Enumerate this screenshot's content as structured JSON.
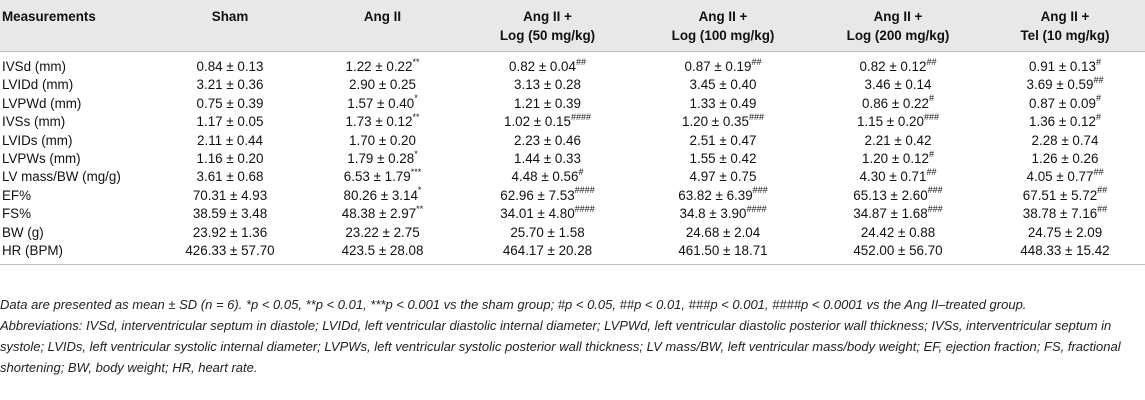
{
  "table": {
    "headers": [
      [
        "Measurements",
        ""
      ],
      [
        "Sham",
        ""
      ],
      [
        "Ang II",
        ""
      ],
      [
        "Ang II +",
        "Log (50 mg/kg)"
      ],
      [
        "Ang II +",
        "Log (100 mg/kg)"
      ],
      [
        "Ang II +",
        "Log (200 mg/kg)"
      ],
      [
        "Ang II +",
        "Tel (10 mg/kg)"
      ]
    ],
    "rows": [
      {
        "label": "IVSd (mm)",
        "cells": [
          {
            "v": "0.84 ± 0.13",
            "s": ""
          },
          {
            "v": "1.22 ± 0.22",
            "s": "**"
          },
          {
            "v": "0.82 ± 0.04",
            "s": "##"
          },
          {
            "v": "0.87 ± 0.19",
            "s": "##"
          },
          {
            "v": "0.82 ± 0.12",
            "s": "##"
          },
          {
            "v": "0.91 ± 0.13",
            "s": "#"
          }
        ]
      },
      {
        "label": "LVIDd (mm)",
        "cells": [
          {
            "v": "3.21 ± 0.36",
            "s": ""
          },
          {
            "v": "2.90 ± 0.25",
            "s": ""
          },
          {
            "v": "3.13 ± 0.28",
            "s": ""
          },
          {
            "v": "3.45 ± 0.40",
            "s": ""
          },
          {
            "v": "3.46 ± 0.14",
            "s": ""
          },
          {
            "v": "3.69 ± 0.59",
            "s": "##"
          }
        ]
      },
      {
        "label": "LVPWd (mm)",
        "cells": [
          {
            "v": "0.75 ± 0.39",
            "s": ""
          },
          {
            "v": "1.57 ± 0.40",
            "s": "*"
          },
          {
            "v": "1.21 ± 0.39",
            "s": ""
          },
          {
            "v": "1.33 ± 0.49",
            "s": ""
          },
          {
            "v": "0.86 ± 0.22",
            "s": "#"
          },
          {
            "v": "0.87 ± 0.09",
            "s": "#"
          }
        ]
      },
      {
        "label": "IVSs (mm)",
        "cells": [
          {
            "v": "1.17 ± 0.05",
            "s": ""
          },
          {
            "v": "1.73 ± 0.12",
            "s": "**"
          },
          {
            "v": "1.02 ± 0.15",
            "s": "####"
          },
          {
            "v": "1.20 ± 0.35",
            "s": "###"
          },
          {
            "v": "1.15 ± 0.20",
            "s": "###"
          },
          {
            "v": "1.36 ± 0.12",
            "s": "#"
          }
        ]
      },
      {
        "label": "LVIDs (mm)",
        "cells": [
          {
            "v": "2.11 ± 0.44",
            "s": ""
          },
          {
            "v": "1.70 ± 0.20",
            "s": ""
          },
          {
            "v": "2.23 ± 0.46",
            "s": ""
          },
          {
            "v": "2.51 ± 0.47",
            "s": ""
          },
          {
            "v": "2.21 ± 0.42",
            "s": ""
          },
          {
            "v": "2.28 ± 0.74",
            "s": ""
          }
        ]
      },
      {
        "label": "LVPWs (mm)",
        "cells": [
          {
            "v": "1.16 ± 0.20",
            "s": ""
          },
          {
            "v": "1.79 ± 0.28",
            "s": "*"
          },
          {
            "v": "1.44 ± 0.33",
            "s": ""
          },
          {
            "v": "1.55 ± 0.42",
            "s": ""
          },
          {
            "v": "1.20 ± 0.12",
            "s": "#"
          },
          {
            "v": "1.26 ± 0.26",
            "s": ""
          }
        ]
      },
      {
        "label": "LV mass/BW (mg/g)",
        "cells": [
          {
            "v": "3.61 ± 0.68",
            "s": ""
          },
          {
            "v": "6.53 ± 1.79",
            "s": "***"
          },
          {
            "v": "4.48 ± 0.56",
            "s": "#"
          },
          {
            "v": "4.97 ± 0.75",
            "s": ""
          },
          {
            "v": "4.30 ± 0.71",
            "s": "##"
          },
          {
            "v": "4.05 ± 0.77",
            "s": "##"
          }
        ]
      },
      {
        "label": "EF%",
        "cells": [
          {
            "v": "70.31 ± 4.93",
            "s": ""
          },
          {
            "v": "80.26 ± 3.14",
            "s": "*"
          },
          {
            "v": "62.96 ± 7.53",
            "s": "####"
          },
          {
            "v": "63.82 ± 6.39",
            "s": "###"
          },
          {
            "v": "65.13 ± 2.60",
            "s": "###"
          },
          {
            "v": "67.51 ± 5.72",
            "s": "##"
          }
        ]
      },
      {
        "label": "FS%",
        "cells": [
          {
            "v": "38.59 ± 3.48",
            "s": ""
          },
          {
            "v": "48.38 ± 2.97",
            "s": "**"
          },
          {
            "v": "34.01 ± 4.80",
            "s": "####"
          },
          {
            "v": "34.8 ± 3.90",
            "s": "####"
          },
          {
            "v": "34.87 ± 1.68",
            "s": "###"
          },
          {
            "v": "38.78 ± 7.16",
            "s": "##"
          }
        ]
      },
      {
        "label": "BW (g)",
        "cells": [
          {
            "v": "23.92 ± 1.36",
            "s": ""
          },
          {
            "v": "23.22 ± 2.75",
            "s": ""
          },
          {
            "v": "25.70 ± 1.58",
            "s": ""
          },
          {
            "v": "24.68 ± 2.04",
            "s": ""
          },
          {
            "v": "24.42 ± 0.88",
            "s": ""
          },
          {
            "v": "24.75 ± 2.09",
            "s": ""
          }
        ]
      },
      {
        "label": "HR (BPM)",
        "cells": [
          {
            "v": "426.33 ± 57.70",
            "s": ""
          },
          {
            "v": "423.5 ± 28.08",
            "s": ""
          },
          {
            "v": "464.17 ± 20.28",
            "s": ""
          },
          {
            "v": "461.50 ± 18.71",
            "s": ""
          },
          {
            "v": "452.00 ± 56.70",
            "s": ""
          },
          {
            "v": "448.33 ± 15.42",
            "s": ""
          }
        ]
      }
    ]
  },
  "footnote": {
    "note": "Data are presented as mean ± SD (n = 6). *p < 0.05, **p < 0.01, ***p < 0.001 vs the sham group; #p < 0.05, ##p < 0.01, ###p < 0.001, ####p < 0.0001 vs the Ang II–treated group.",
    "abbreviations": "Abbreviations: IVSd, interventricular septum in diastole; LVIDd, left ventricular diastolic internal diameter; LVPWd, left ventricular diastolic posterior wall thickness; IVSs, interventricular septum in systole; LVIDs, left ventricular systolic internal diameter; LVPWs, left ventricular systolic posterior wall thickness; LV mass/BW, left ventricular mass/body weight; EF, ejection fraction; FS, fractional shortening; BW, body weight; HR, heart rate."
  }
}
